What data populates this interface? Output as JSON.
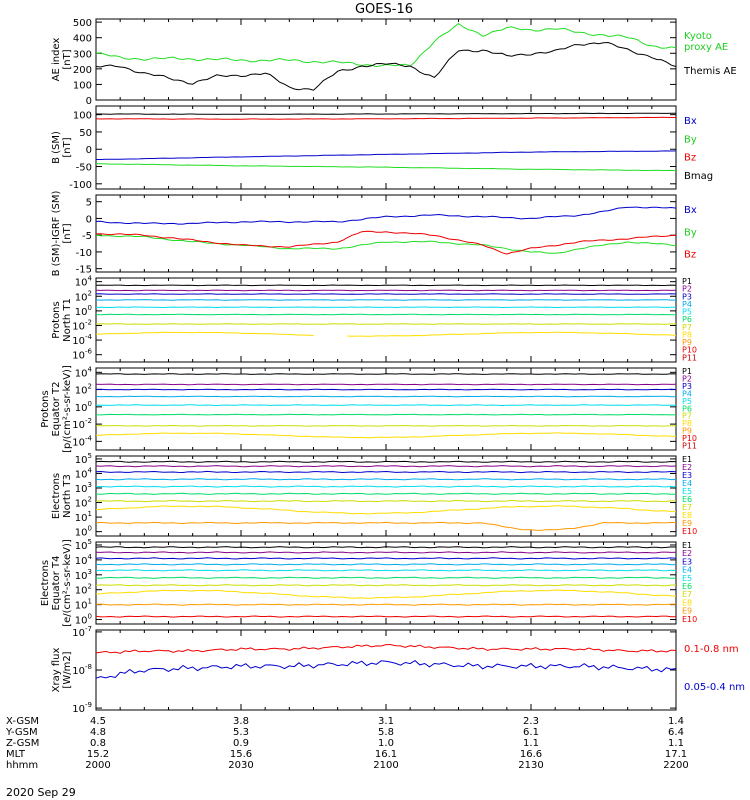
{
  "title": "GOES-16",
  "date": "2020 Sep 29",
  "colors": {
    "black": "#000000",
    "red": "#ee0000",
    "green": "#22dd22",
    "blue": "#0000cc",
    "cyan": "#00bbee",
    "yellow": "#ffdd00",
    "orange": "#ff9900",
    "purple": "#880088",
    "p_colors": [
      "#000000",
      "#880088",
      "#0000cc",
      "#00aaee",
      "#00ddee",
      "#00dd66",
      "#ccdd00",
      "#ffdd00",
      "#ff9900",
      "#ee0000",
      "#cc0000"
    ],
    "e_colors": [
      "#000000",
      "#880088",
      "#0000cc",
      "#00aaee",
      "#00ddee",
      "#00dd66",
      "#ccdd00",
      "#ffdd00",
      "#ff9900",
      "#ee0000"
    ]
  },
  "xaxis": {
    "rows": [
      {
        "label": "X-GSM",
        "values": [
          "4.5",
          "3.8",
          "3.1",
          "2.3",
          "1.4"
        ]
      },
      {
        "label": "Y-GSM",
        "values": [
          "4.8",
          "5.3",
          "5.8",
          "6.1",
          "6.4"
        ]
      },
      {
        "label": "Z-GSM",
        "values": [
          "0.8",
          "0.9",
          "1.0",
          "1.1",
          "1.1"
        ]
      },
      {
        "label": "MLT",
        "values": [
          "15.2",
          "15.6",
          "16.1",
          "16.6",
          "17.1"
        ]
      },
      {
        "label": "hhmm",
        "values": [
          "2000",
          "2030",
          "2100",
          "2130",
          "2200"
        ]
      }
    ]
  },
  "chart_data": [
    {
      "type": "line",
      "ylabel": "AE index\n[nT]",
      "yticks": [
        "500",
        "400",
        "300",
        "200",
        "100",
        "0"
      ],
      "ylim": [
        0,
        520
      ],
      "log": false,
      "x_minutes_range": [
        0,
        120
      ],
      "series": [
        {
          "name": "Kyoto\nproxy AE",
          "color": "#22dd22",
          "x": [
            0,
            5,
            10,
            20,
            30,
            40,
            50,
            60,
            65,
            70,
            75,
            80,
            85,
            90,
            95,
            100,
            105,
            110,
            115,
            120
          ],
          "y": [
            300,
            270,
            265,
            265,
            255,
            255,
            240,
            220,
            220,
            380,
            480,
            420,
            460,
            450,
            460,
            430,
            420,
            400,
            350,
            330
          ]
        },
        {
          "name": "Themis AE",
          "color": "#000000",
          "x": [
            0,
            5,
            10,
            15,
            20,
            25,
            30,
            35,
            40,
            45,
            50,
            55,
            60,
            65,
            70,
            75,
            80,
            85,
            90,
            95,
            100,
            105,
            110,
            115,
            120
          ],
          "y": [
            210,
            220,
            170,
            140,
            110,
            150,
            160,
            170,
            80,
            70,
            180,
            220,
            230,
            220,
            140,
            320,
            320,
            280,
            300,
            310,
            360,
            370,
            320,
            280,
            210
          ]
        }
      ]
    },
    {
      "type": "line",
      "ylabel": "B (SM)\n[nT]",
      "yticks": [
        "100",
        "50",
        "0",
        "-50",
        "-100"
      ],
      "ylim": [
        -115,
        125
      ],
      "log": false,
      "series": [
        {
          "name": "Bx",
          "color": "#0000cc",
          "x": [
            0,
            30,
            60,
            90,
            120
          ],
          "y": [
            -30,
            -22,
            -15,
            -8,
            -5
          ]
        },
        {
          "name": "By",
          "color": "#22dd22",
          "x": [
            0,
            30,
            60,
            90,
            120
          ],
          "y": [
            -42,
            -48,
            -52,
            -58,
            -62
          ]
        },
        {
          "name": "Bz",
          "color": "#ee0000",
          "x": [
            0,
            30,
            60,
            90,
            120
          ],
          "y": [
            88,
            87,
            88,
            90,
            92
          ]
        },
        {
          "name": "Bmag",
          "color": "#000000",
          "x": [
            0,
            30,
            60,
            90,
            120
          ],
          "y": [
            102,
            101,
            102,
            103,
            104
          ]
        }
      ]
    },
    {
      "type": "line",
      "ylabel": "B (SM)-IGRF (SM)\n[nT]",
      "yticks": [
        "5",
        "0",
        "-5",
        "-10",
        "-15"
      ],
      "ylim": [
        -16,
        7
      ],
      "log": false,
      "series": [
        {
          "name": "Bx",
          "color": "#0000cc",
          "x": [
            0,
            10,
            20,
            30,
            40,
            50,
            60,
            70,
            80,
            90,
            100,
            105,
            110,
            120
          ],
          "y": [
            -1,
            -1.5,
            -1.5,
            -1,
            -1,
            -1,
            0.5,
            1,
            0.5,
            0,
            1,
            2,
            3.5,
            3
          ]
        },
        {
          "name": "By",
          "color": "#22dd22",
          "x": [
            0,
            10,
            20,
            30,
            40,
            50,
            60,
            70,
            80,
            90,
            95,
            100,
            110,
            120
          ],
          "y": [
            -5,
            -5.5,
            -7,
            -8,
            -9,
            -9,
            -7,
            -7,
            -8,
            -10,
            -10.5,
            -9,
            -7,
            -8
          ]
        },
        {
          "name": "Bz",
          "color": "#ee0000",
          "x": [
            0,
            10,
            20,
            30,
            40,
            50,
            55,
            60,
            70,
            80,
            85,
            90,
            100,
            110,
            120
          ],
          "y": [
            -4.5,
            -5,
            -6.5,
            -8,
            -8.5,
            -7,
            -4,
            -4,
            -5,
            -8,
            -10.5,
            -9,
            -7,
            -6,
            -5
          ]
        }
      ]
    },
    {
      "type": "line",
      "ylabel": "Protons\nNorth T1",
      "log": true,
      "yticks": [
        "10^4",
        "10^2",
        "10^0",
        "10^-2",
        "10^-4",
        "10^-6"
      ],
      "ylim_log": [
        -7,
        4.5
      ],
      "series_names": [
        "P1",
        "P2",
        "P3",
        "P4",
        "P5",
        "P6",
        "P7",
        "P8",
        "P9",
        "P10",
        "P11"
      ],
      "levels": [
        3.5,
        2.8,
        2.3,
        1.5,
        0.5,
        -0.5,
        -1.8,
        -3.2,
        null,
        null,
        null
      ]
    },
    {
      "type": "line",
      "ylabel": "Protons\nEquator T2\n[p/(cm²-s-sr-keV)]",
      "log": true,
      "yticks": [
        "10^4",
        "10^2",
        "10^0",
        "10^-2",
        "10^-4"
      ],
      "ylim_log": [
        -5,
        4.5
      ],
      "series_names": [
        "P1",
        "P2",
        "P3",
        "P4",
        "P5",
        "P6",
        "P7",
        "P8",
        "P9",
        "P10",
        "P11"
      ],
      "levels": [
        3.8,
        2.6,
        2.0,
        1.2,
        0.2,
        -0.9,
        -2.2,
        -3.3,
        null,
        null,
        null
      ]
    },
    {
      "type": "line",
      "ylabel": "Electrons\nNorth T3",
      "log": true,
      "yticks": [
        "10^5",
        "10^4",
        "10^3",
        "10^2",
        "10^1",
        "10^0"
      ],
      "ylim_log": [
        -0.3,
        5.2
      ],
      "series_names": [
        "E1",
        "E2",
        "E3",
        "E4",
        "E5",
        "E6",
        "E7",
        "E8",
        "E9",
        "E10"
      ],
      "levels": [
        4.8,
        4.5,
        4.1,
        3.6,
        3.1,
        2.6,
        2.1,
        1.5,
        0.6,
        null
      ]
    },
    {
      "type": "line",
      "ylabel": "Electrons\nEquator T4\n[e/(cm²-s-sr-keV)]",
      "log": true,
      "yticks": [
        "10^5",
        "10^4",
        "10^3",
        "10^2",
        "10^1",
        "10^0"
      ],
      "ylim_log": [
        -0.3,
        5.2
      ],
      "series_names": [
        "E1",
        "E2",
        "E3",
        "E4",
        "E5",
        "E6",
        "E7",
        "E8",
        "E9",
        "E10"
      ],
      "levels": [
        4.85,
        4.5,
        4.1,
        3.7,
        3.3,
        2.8,
        2.3,
        1.7,
        1.0,
        0.2
      ]
    },
    {
      "type": "line",
      "ylabel": "Xray flux\n[W/m2]",
      "log": true,
      "yticks": [
        "10^-7",
        "10^-8",
        "10^-9"
      ],
      "ylim_log": [
        -9.05,
        -6.95
      ],
      "series": [
        {
          "name": "0.1-0.8 nm",
          "color": "#ee0000",
          "x": [
            0,
            10,
            20,
            30,
            40,
            50,
            60,
            70,
            80,
            90,
            100,
            110,
            120
          ],
          "y": [
            -7.55,
            -7.5,
            -7.5,
            -7.45,
            -7.45,
            -7.4,
            -7.35,
            -7.4,
            -7.45,
            -7.45,
            -7.45,
            -7.5,
            -7.5
          ]
        },
        {
          "name": "0.05-0.4 nm",
          "color": "#0000cc",
          "x": [
            0,
            5,
            10,
            20,
            30,
            40,
            50,
            60,
            70,
            80,
            90,
            100,
            110,
            120
          ],
          "y": [
            -8.25,
            -8.1,
            -8.0,
            -7.95,
            -7.9,
            -7.9,
            -7.85,
            -7.8,
            -7.85,
            -7.9,
            -7.9,
            -7.9,
            -7.95,
            -8.0
          ]
        }
      ]
    }
  ]
}
